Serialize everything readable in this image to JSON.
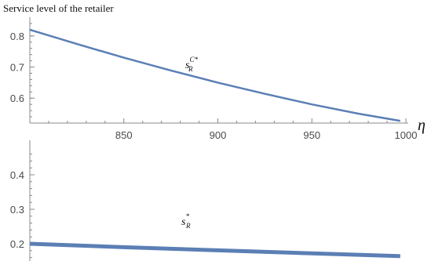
{
  "chart_data": {
    "type": "line",
    "title": "Service level of the retailer",
    "xlabel": "η",
    "ylabel": "",
    "xlim": [
      800,
      1000
    ],
    "ylim_upper": [
      0.52,
      0.86
    ],
    "ylim_lower": [
      0.15,
      0.5
    ],
    "x_ticks": [
      "850",
      "900",
      "950",
      "1000"
    ],
    "y_ticks_upper": [
      "0.8",
      "0.7",
      "0.6"
    ],
    "y_ticks_lower": [
      "0.4",
      "0.3",
      "0.2"
    ],
    "series": [
      {
        "name_main": "s",
        "name_sub": "R",
        "name_sup": "C*",
        "color": "#5B7FB5",
        "x": [
          800,
          825,
          850,
          875,
          900,
          925,
          950,
          975,
          997
        ],
        "y": [
          0.82,
          0.774,
          0.73,
          0.689,
          0.65,
          0.614,
          0.58,
          0.55,
          0.527
        ]
      },
      {
        "name_main": "s",
        "name_sub": "R",
        "name_sup": "*",
        "color": "#5B7FB5",
        "x": [
          800,
          850,
          900,
          950,
          997
        ],
        "y": [
          0.2,
          0.19,
          0.181,
          0.172,
          0.164
        ]
      }
    ],
    "grid": false,
    "axis_break": true
  }
}
